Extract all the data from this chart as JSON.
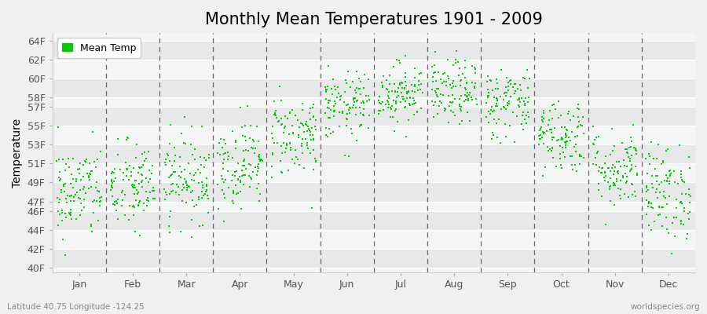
{
  "title": "Monthly Mean Temperatures 1901 - 2009",
  "ylabel": "Temperature",
  "xlabel_bottom_left": "Latitude 40.75 Longitude -124.25",
  "xlabel_bottom_right": "worldspecies.org",
  "legend_label": "Mean Temp",
  "yticks": [
    "40F",
    "42F",
    "44F",
    "46F",
    "47F",
    "49F",
    "51F",
    "53F",
    "55F",
    "57F",
    "58F",
    "60F",
    "62F",
    "64F"
  ],
  "ytick_vals": [
    40,
    42,
    44,
    46,
    47,
    49,
    51,
    53,
    55,
    57,
    58,
    60,
    62,
    64
  ],
  "months": [
    "Jan",
    "Feb",
    "Mar",
    "Apr",
    "May",
    "Jun",
    "Jul",
    "Aug",
    "Sep",
    "Oct",
    "Nov",
    "Dec"
  ],
  "dot_color": "#00cc00",
  "bg_color": "#f0f0f0",
  "plot_bg_light": "#f5f5f5",
  "plot_bg_dark": "#e8e8e8",
  "grid_color": "#ffffff",
  "dashed_line_color": "#666666",
  "title_fontsize": 15,
  "axis_fontsize": 9,
  "legend_fontsize": 9,
  "ylim": [
    39.5,
    64.8
  ],
  "seed": 42,
  "n_years": 109,
  "monthly_means": [
    48.0,
    48.5,
    49.5,
    51.0,
    54.0,
    57.0,
    58.5,
    58.5,
    57.5,
    54.0,
    50.5,
    48.0
  ],
  "monthly_stds": [
    2.5,
    2.4,
    2.3,
    2.3,
    2.2,
    1.8,
    1.6,
    1.7,
    1.9,
    2.0,
    2.1,
    2.5
  ]
}
